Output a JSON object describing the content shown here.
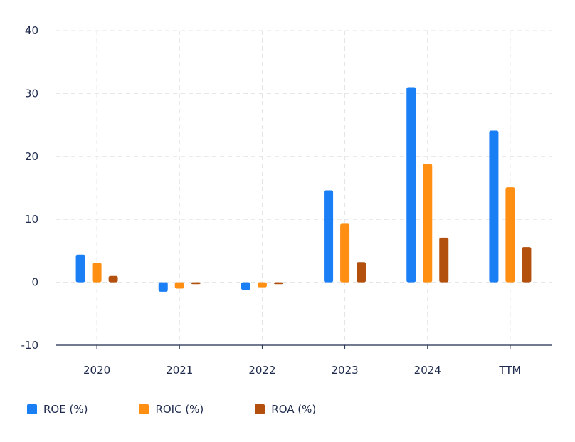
{
  "chart_data": {
    "type": "bar",
    "title": "",
    "xlabel": "",
    "ylabel": "",
    "categories": [
      "2020",
      "2021",
      "2022",
      "2023",
      "2024",
      "TTM"
    ],
    "series": [
      {
        "name": "ROE (%)",
        "color": "#1a7ef5",
        "values": [
          4.4,
          -1.5,
          -1.2,
          14.6,
          31.0,
          24.1
        ]
      },
      {
        "name": "ROIC (%)",
        "color": "#ff8f12",
        "values": [
          3.1,
          -1.0,
          -0.8,
          9.3,
          18.8,
          15.1
        ]
      },
      {
        "name": "ROA (%)",
        "color": "#b3500e",
        "values": [
          1.0,
          -0.3,
          -0.3,
          3.2,
          7.1,
          5.6
        ]
      }
    ],
    "yticks": [
      -10,
      0,
      10,
      20,
      30,
      40
    ],
    "ylim": [
      -10,
      40
    ],
    "grid": true,
    "legend_position": "bottom-left"
  }
}
